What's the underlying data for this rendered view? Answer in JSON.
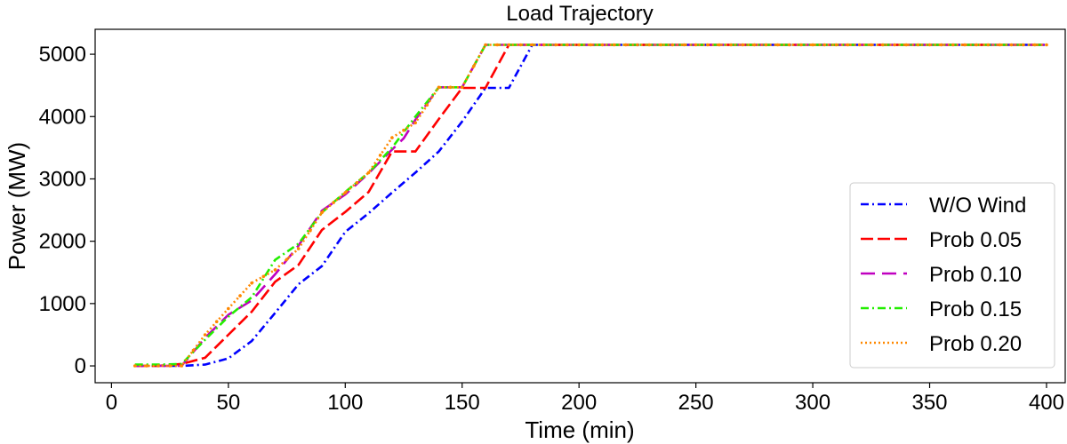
{
  "chart_data": {
    "type": "line",
    "title": "Load Trajectory",
    "xlabel": "Time (min)",
    "ylabel": "Power (MW)",
    "xlim": [
      -7,
      408
    ],
    "ylim": [
      -270,
      5400
    ],
    "xticks": [
      0,
      50,
      100,
      150,
      200,
      250,
      300,
      350,
      400
    ],
    "yticks": [
      0,
      1000,
      2000,
      3000,
      4000,
      5000
    ],
    "grid": false,
    "legend_position": "lower-right",
    "series": [
      {
        "name": "W/O Wind",
        "color": "#0000ff",
        "dash": "dashdot",
        "x": [
          10,
          20,
          30,
          40,
          50,
          60,
          70,
          80,
          90,
          100,
          110,
          120,
          130,
          140,
          150,
          160,
          170,
          180,
          400
        ],
        "y": [
          0,
          0,
          0,
          20,
          120,
          400,
          850,
          1310,
          1600,
          2150,
          2450,
          2780,
          3100,
          3440,
          3920,
          4460,
          4460,
          5150,
          5150
        ]
      },
      {
        "name": "Prob 0.05",
        "color": "#ff0000",
        "dash": "dashed",
        "x": [
          10,
          20,
          30,
          40,
          50,
          60,
          70,
          80,
          90,
          100,
          110,
          120,
          130,
          140,
          150,
          160,
          170,
          400
        ],
        "y": [
          0,
          0,
          30,
          130,
          500,
          870,
          1350,
          1620,
          2180,
          2470,
          2790,
          3440,
          3440,
          3960,
          4460,
          4460,
          5150,
          5150
        ]
      },
      {
        "name": "Prob 0.10",
        "color": "#c000c0",
        "dash": "longdash",
        "x": [
          10,
          20,
          30,
          40,
          50,
          60,
          70,
          80,
          90,
          100,
          110,
          120,
          125,
          130,
          140,
          150,
          160,
          400
        ],
        "y": [
          0,
          0,
          0,
          450,
          820,
          1050,
          1470,
          1930,
          2490,
          2750,
          3090,
          3470,
          3650,
          3950,
          4470,
          4470,
          5150,
          5150
        ]
      },
      {
        "name": "Prob 0.15",
        "color": "#22ee00",
        "dash": "dashdot",
        "x": [
          10,
          20,
          30,
          40,
          50,
          60,
          70,
          80,
          90,
          100,
          110,
          120,
          130,
          140,
          150,
          160,
          400
        ],
        "y": [
          20,
          20,
          30,
          420,
          790,
          1100,
          1700,
          1960,
          2460,
          2790,
          3100,
          3500,
          4000,
          4470,
          4470,
          5150,
          5150
        ]
      },
      {
        "name": "Prob 0.20",
        "color": "#ff8800",
        "dash": "dotted",
        "x": [
          10,
          20,
          30,
          40,
          50,
          60,
          70,
          80,
          90,
          100,
          110,
          120,
          130,
          140,
          150,
          160,
          400
        ],
        "y": [
          0,
          0,
          0,
          500,
          920,
          1330,
          1540,
          1880,
          2460,
          2780,
          3100,
          3660,
          3900,
          4470,
          4470,
          5150,
          5150
        ],
        "markers": true
      }
    ]
  }
}
